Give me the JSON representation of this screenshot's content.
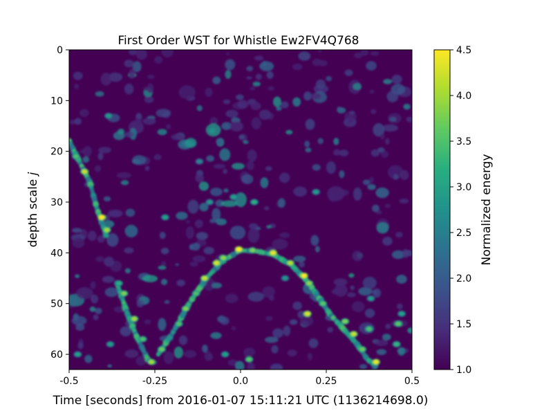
{
  "chart_data": {
    "type": "heatmap",
    "title": "First Order WST for Whistle  Ew2FV4Q768",
    "xlabel": "Time [seconds] from 2016-01-07 15:11:21 UTC (1136214698.0)",
    "ylabel": "depth scale",
    "ylabel_symbol": "j",
    "xlim": [
      -0.5,
      0.5
    ],
    "ylim": [
      63,
      0
    ],
    "x_ticks": [
      -0.5,
      -0.25,
      0.0,
      0.25,
      0.5
    ],
    "x_tick_labels": [
      "-0.5",
      "-0.25",
      "0.0",
      "0.25",
      "0.5"
    ],
    "y_ticks": [
      0,
      10,
      20,
      30,
      40,
      50,
      60
    ],
    "y_tick_labels": [
      "0",
      "10",
      "20",
      "30",
      "40",
      "50",
      "60"
    ],
    "colorbar": {
      "label": "Normalized energy",
      "range": [
        1.0,
        4.5
      ],
      "ticks": [
        1.0,
        1.5,
        2.0,
        2.5,
        3.0,
        3.5,
        4.0,
        4.5
      ],
      "tick_labels": [
        "1.0",
        "1.5",
        "2.0",
        "2.5",
        "3.0",
        "3.5",
        "4.0",
        "4.5"
      ],
      "colormap": "viridis"
    },
    "grid": false,
    "background_value": 1.0,
    "ridges": [
      {
        "points": [
          [
            -0.5,
            18
          ],
          [
            -0.47,
            22
          ],
          [
            -0.44,
            26
          ],
          [
            -0.42,
            31
          ],
          [
            -0.4,
            35
          ],
          [
            -0.39,
            37
          ]
        ]
      },
      {
        "points": [
          [
            -0.36,
            46
          ],
          [
            -0.33,
            52
          ],
          [
            -0.3,
            57
          ],
          [
            -0.27,
            61
          ],
          [
            -0.255,
            62
          ]
        ]
      },
      {
        "points": [
          [
            -0.24,
            60
          ],
          [
            -0.2,
            56
          ],
          [
            -0.15,
            50
          ],
          [
            -0.1,
            45
          ],
          [
            -0.05,
            41.5
          ],
          [
            0.0,
            39.5
          ],
          [
            0.05,
            39.7
          ],
          [
            0.1,
            40.5
          ],
          [
            0.15,
            42.5
          ],
          [
            0.2,
            46
          ],
          [
            0.23,
            49
          ],
          [
            0.26,
            52
          ],
          [
            0.3,
            55
          ],
          [
            0.34,
            58
          ],
          [
            0.37,
            61
          ],
          [
            0.4,
            62.5
          ]
        ]
      }
    ],
    "hotspots": [
      [
        -0.48,
        21,
        3.5
      ],
      [
        -0.455,
        24,
        4.2
      ],
      [
        -0.405,
        33,
        4.5
      ],
      [
        -0.39,
        35.5,
        4.0
      ],
      [
        -0.355,
        46,
        3.2
      ],
      [
        -0.34,
        48,
        3.8
      ],
      [
        -0.31,
        53,
        4.0
      ],
      [
        -0.285,
        57,
        3.5
      ],
      [
        -0.26,
        61.5,
        4.0
      ],
      [
        -0.23,
        59,
        3.7
      ],
      [
        -0.18,
        54,
        3.5
      ],
      [
        -0.16,
        51,
        3.8
      ],
      [
        -0.13,
        48,
        3.5
      ],
      [
        -0.105,
        45,
        4.2
      ],
      [
        -0.07,
        42,
        4.3
      ],
      [
        -0.05,
        41,
        3.9
      ],
      [
        -0.005,
        39.3,
        4.5
      ],
      [
        0.035,
        39.5,
        3.8
      ],
      [
        0.095,
        40,
        4.4
      ],
      [
        0.145,
        42,
        4.1
      ],
      [
        0.185,
        44.5,
        4.5
      ],
      [
        0.2,
        46,
        3.9
      ],
      [
        0.24,
        50,
        3.6
      ],
      [
        0.195,
        52,
        4.3
      ],
      [
        0.305,
        53.5,
        3.8
      ],
      [
        0.33,
        56,
        4.2
      ],
      [
        0.355,
        59,
        3.7
      ],
      [
        0.395,
        61.5,
        4.4
      ],
      [
        0.375,
        55,
        3.5
      ],
      [
        0.46,
        54,
        3.6
      ],
      [
        0.455,
        58,
        3.3
      ],
      [
        -0.02,
        29,
        3.0
      ],
      [
        0.04,
        30,
        3.2
      ],
      [
        0.22,
        28,
        2.9
      ],
      [
        -0.22,
        33,
        3.0
      ],
      [
        -0.09,
        30,
        2.8
      ],
      [
        -0.385,
        13,
        2.9
      ],
      [
        0.025,
        61,
        3.6
      ],
      [
        -0.045,
        60,
        3.0
      ],
      [
        0.38,
        49,
        2.9
      ],
      [
        -0.475,
        60,
        3.0
      ],
      [
        -0.38,
        58,
        2.9
      ],
      [
        -0.12,
        22,
        2.6
      ],
      [
        0.13,
        45,
        2.8
      ],
      [
        0.47,
        52,
        3.0
      ]
    ],
    "noise_points": 360
  }
}
